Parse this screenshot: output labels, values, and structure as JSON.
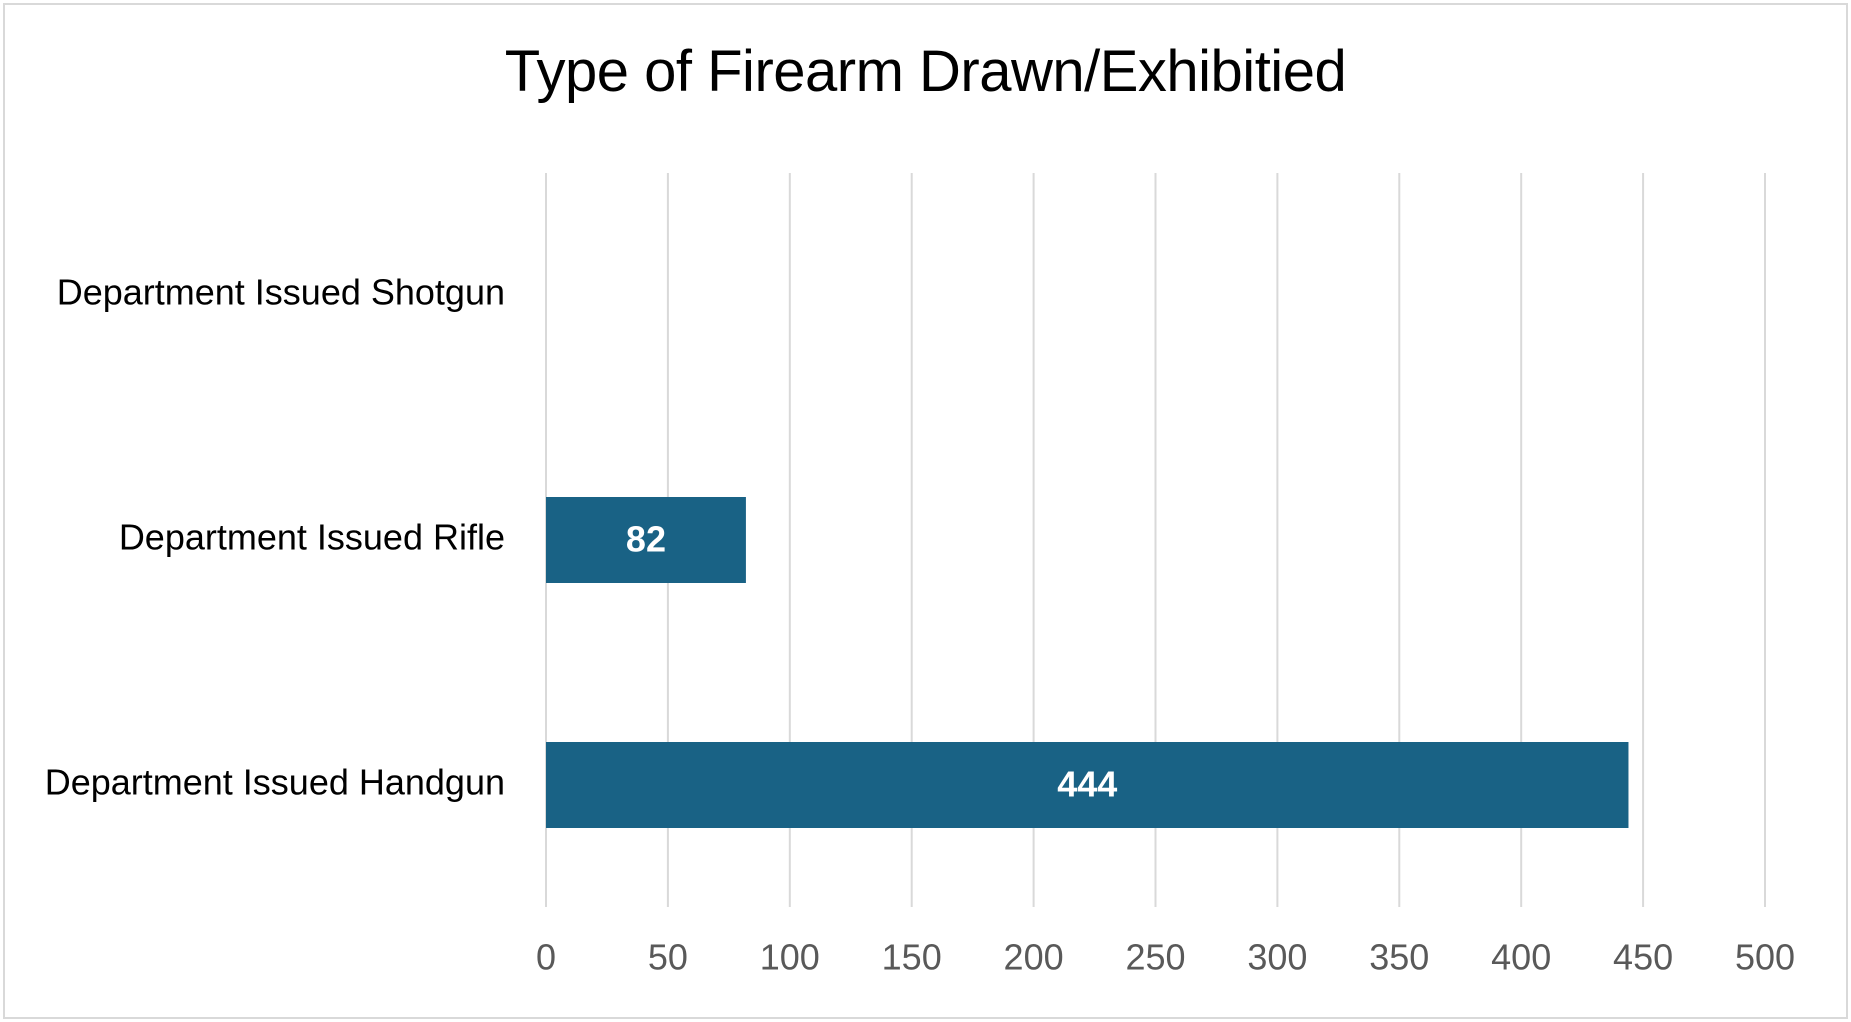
{
  "chart_data": {
    "type": "bar",
    "orientation": "horizontal",
    "title": "Type of Firearm Drawn/Exhibitied",
    "categories": [
      "Department Issued Shotgun",
      "Department Issued Rifle",
      "Department Issued Handgun"
    ],
    "values": [
      0,
      82,
      444
    ],
    "data_labels": [
      "",
      "82",
      "444"
    ],
    "xlim": [
      0,
      500
    ],
    "x_ticks": [
      0,
      50,
      100,
      150,
      200,
      250,
      300,
      350,
      400,
      450,
      500
    ],
    "x_tick_labels": [
      "0",
      "50",
      "100",
      "150",
      "200",
      "250",
      "300",
      "350",
      "400",
      "450",
      "500"
    ],
    "xlabel": "",
    "ylabel": "",
    "grid": "vertical",
    "legend": "none",
    "bar_color": "#196285",
    "grid_color": "#d9d9d9"
  }
}
